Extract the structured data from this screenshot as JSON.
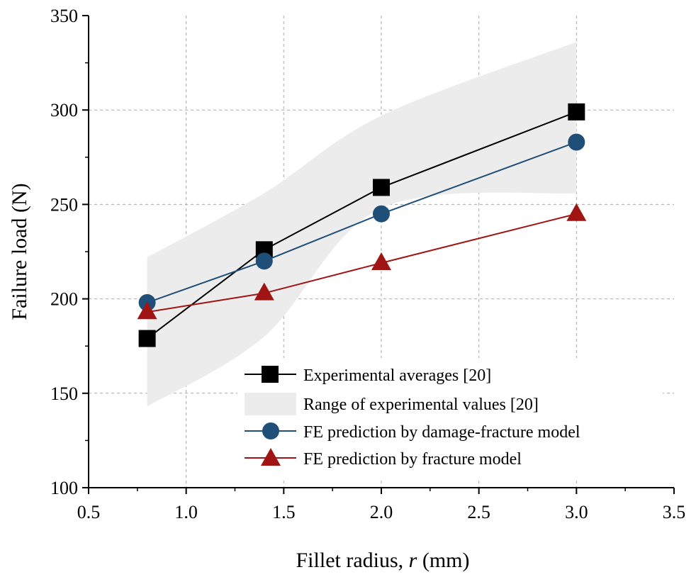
{
  "chart_data": {
    "type": "line",
    "xlabel_main": "Fillet radius, ",
    "xlabel_var": "r",
    "xlabel_unit": " (mm)",
    "ylabel": "Failure load (N)",
    "xlim": [
      0.5,
      3.5
    ],
    "ylim": [
      100,
      350
    ],
    "xticks": [
      0.5,
      1.0,
      1.5,
      2.0,
      2.5,
      3.0,
      3.5
    ],
    "xtick_labels": [
      "0.5",
      "1.0",
      "1.5",
      "2.0",
      "2.5",
      "3.0",
      "3.5"
    ],
    "yticks": [
      100,
      150,
      200,
      250,
      300,
      350
    ],
    "ytick_labels": [
      "100",
      "150",
      "200",
      "250",
      "300",
      "350"
    ],
    "grid": true,
    "legend_position": "bottom-right",
    "range_band": {
      "name": "Range of experimental values [20]",
      "color": "#ececec",
      "x": [
        0.8,
        1.4,
        2.0,
        3.0
      ],
      "upper": [
        222,
        256,
        297,
        336
      ],
      "lower": [
        143,
        180,
        248,
        256
      ]
    },
    "series": [
      {
        "name": "Experimental averages [20]",
        "marker": "square",
        "color": "#000000",
        "x": [
          0.8,
          1.4,
          2.0,
          3.0
        ],
        "values": [
          179,
          226,
          259,
          299
        ]
      },
      {
        "name": "FE prediction by damage-fracture model",
        "marker": "circle",
        "color": "#1f4e79",
        "x": [
          0.8,
          1.4,
          2.0,
          3.0
        ],
        "values": [
          198,
          220,
          245,
          283
        ]
      },
      {
        "name": "FE prediction by fracture model",
        "marker": "triangle",
        "color": "#a01414",
        "x": [
          0.8,
          1.4,
          2.0,
          3.0
        ],
        "values": [
          193,
          203,
          219,
          245
        ]
      }
    ]
  }
}
